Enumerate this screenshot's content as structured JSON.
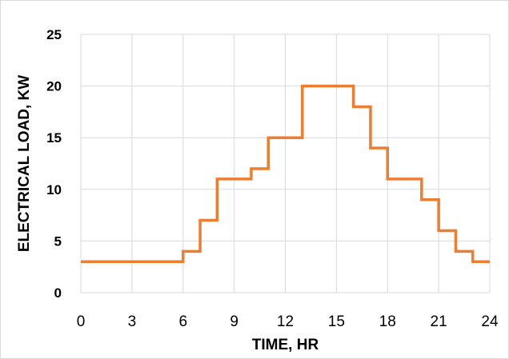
{
  "chart_data": {
    "type": "line",
    "step": true,
    "title": "",
    "xlabel": "TIME, HR",
    "ylabel": "ELECTRICAL LOAD, KW",
    "xlim": [
      0,
      24
    ],
    "ylim": [
      0,
      25
    ],
    "xticks": [
      0,
      3,
      6,
      9,
      12,
      15,
      18,
      21,
      24
    ],
    "yticks": [
      0,
      5,
      10,
      15,
      20,
      25
    ],
    "grid": true,
    "legend": "none",
    "series": [
      {
        "color": "#ED7D31",
        "x": [
          0,
          6,
          7,
          8,
          10,
          11,
          13,
          16,
          17,
          18,
          20,
          21,
          22,
          23
        ],
        "values": [
          3,
          4,
          7,
          11,
          12,
          15,
          20,
          18,
          14,
          11,
          9,
          6,
          4,
          3
        ],
        "x_end": 24
      }
    ]
  },
  "colors": {
    "gridline": "#d9d9d9",
    "series": "#ED7D31"
  }
}
